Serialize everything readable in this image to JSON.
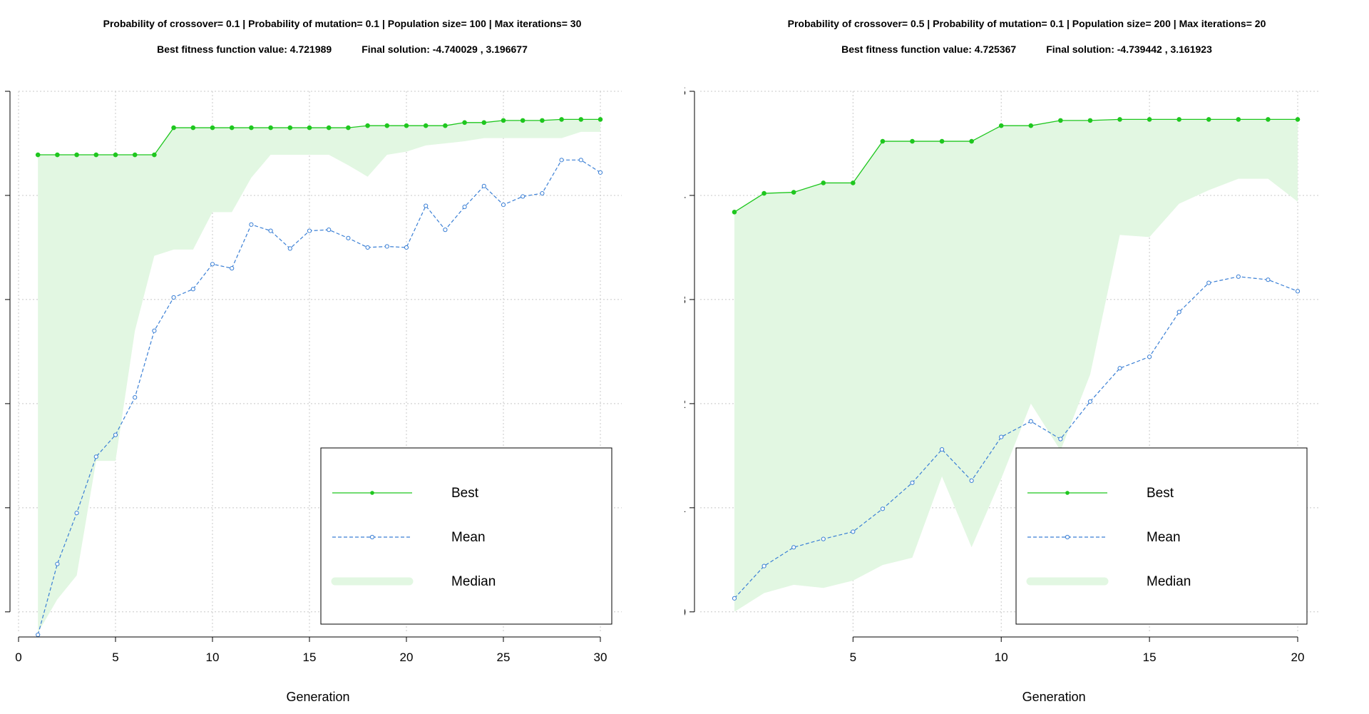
{
  "charts": [
    {
      "header": {
        "params": "Probability of crossover= 0.1  |  Probability of mutation= 0.1  |  Population size= 100  |  Max iterations= 30",
        "best_fitness": "Best fitness function value:  4.721989",
        "final_solution": "Final solution:  -4.740029 ,  3.196677"
      }
    },
    {
      "header": {
        "params": "Probability of crossover= 0.5  |  Probability of mutation= 0.1  |  Population size= 200  |  Max iterations= 20",
        "best_fitness": "Best fitness function value:  4.725367",
        "final_solution": "Final solution:  -4.739442 ,  3.161923"
      }
    }
  ],
  "colors": {
    "best": "#1fc71f",
    "mean": "#3a7fd5",
    "median_fill": "#e2f7e2",
    "grid": "#c8c8c8"
  },
  "chart_data": [
    {
      "type": "line",
      "title": "Probability of crossover= 0.1  |  Probability of mutation= 0.1  |  Population size= 100  |  Max iterations= 30",
      "xlabel": "Generation",
      "ylabel": "",
      "xlim": [
        0,
        30
      ],
      "ylim": [
        -0.2,
        5.0
      ],
      "x_ticks": [
        0,
        5,
        10,
        15,
        20,
        25,
        30
      ],
      "y_ticks": [
        0,
        1,
        2,
        3,
        4,
        5
      ],
      "y_tick_labels_visible": false,
      "grid": true,
      "legend": {
        "position": "bottom-right",
        "entries": [
          "Best",
          "Mean",
          "Median"
        ]
      },
      "x": [
        1,
        2,
        3,
        4,
        5,
        6,
        7,
        8,
        9,
        10,
        11,
        12,
        13,
        14,
        15,
        16,
        17,
        18,
        19,
        20,
        21,
        22,
        23,
        24,
        25,
        26,
        27,
        28,
        29,
        30
      ],
      "series": [
        {
          "name": "Best",
          "values": [
            4.39,
            4.39,
            4.39,
            4.39,
            4.39,
            4.39,
            4.39,
            4.65,
            4.65,
            4.65,
            4.65,
            4.65,
            4.65,
            4.65,
            4.65,
            4.65,
            4.65,
            4.67,
            4.67,
            4.67,
            4.67,
            4.67,
            4.7,
            4.7,
            4.72,
            4.72,
            4.72,
            4.73,
            4.73,
            4.73
          ]
        },
        {
          "name": "Mean",
          "values": [
            -0.22,
            0.46,
            0.95,
            1.49,
            1.7,
            2.06,
            2.7,
            3.02,
            3.1,
            3.34,
            3.3,
            3.72,
            3.66,
            3.49,
            3.66,
            3.67,
            3.59,
            3.5,
            3.51,
            3.5,
            3.9,
            3.67,
            3.89,
            4.09,
            3.91,
            3.99,
            4.02,
            4.34,
            4.34,
            4.22
          ]
        },
        {
          "name": "Median",
          "kind": "band",
          "lower": [
            -0.2,
            0.12,
            0.35,
            1.45,
            1.45,
            2.7,
            3.42,
            3.48,
            3.48,
            3.84,
            3.84,
            4.17,
            4.39,
            4.39,
            4.39,
            4.39,
            4.29,
            4.18,
            4.39,
            4.42,
            4.48,
            4.5,
            4.52,
            4.55,
            4.55,
            4.55,
            4.55,
            4.55,
            4.61,
            4.61
          ],
          "upper": [
            4.39,
            4.39,
            4.39,
            4.39,
            4.39,
            4.39,
            4.39,
            4.65,
            4.65,
            4.65,
            4.65,
            4.65,
            4.65,
            4.65,
            4.65,
            4.65,
            4.65,
            4.67,
            4.67,
            4.67,
            4.67,
            4.67,
            4.7,
            4.7,
            4.72,
            4.72,
            4.72,
            4.73,
            4.73,
            4.73
          ]
        }
      ]
    },
    {
      "type": "line",
      "title": "Probability of crossover= 0.5  |  Probability of mutation= 0.1  |  Population size= 200  |  Max iterations= 20",
      "xlabel": "Generation",
      "ylabel": "",
      "xlim": [
        1,
        20
      ],
      "ylim": [
        -0.2,
        5.0
      ],
      "x_ticks": [
        5,
        10,
        15,
        20
      ],
      "y_ticks": [
        0,
        1,
        2,
        3,
        4,
        5
      ],
      "y_tick_labels_visible": true,
      "grid": true,
      "legend": {
        "position": "bottom-right",
        "entries": [
          "Best",
          "Mean",
          "Median"
        ]
      },
      "x": [
        1,
        2,
        3,
        4,
        5,
        6,
        7,
        8,
        9,
        10,
        11,
        12,
        13,
        14,
        15,
        16,
        17,
        18,
        19,
        20
      ],
      "series": [
        {
          "name": "Best",
          "values": [
            3.84,
            4.02,
            4.03,
            4.12,
            4.12,
            4.52,
            4.52,
            4.52,
            4.52,
            4.67,
            4.67,
            4.72,
            4.72,
            4.73,
            4.73,
            4.73,
            4.73,
            4.73,
            4.73,
            4.73
          ]
        },
        {
          "name": "Mean",
          "values": [
            0.13,
            0.44,
            0.62,
            0.7,
            0.77,
            0.99,
            1.24,
            1.56,
            1.26,
            1.68,
            1.83,
            1.66,
            2.02,
            2.34,
            2.45,
            2.88,
            3.16,
            3.22,
            3.19,
            3.08
          ]
        },
        {
          "name": "Median",
          "kind": "band",
          "lower": [
            0.0,
            0.18,
            0.26,
            0.23,
            0.3,
            0.45,
            0.52,
            1.3,
            0.62,
            1.28,
            2.0,
            1.55,
            2.28,
            3.62,
            3.6,
            3.92,
            4.05,
            4.16,
            4.16,
            3.94
          ],
          "upper": [
            3.84,
            4.02,
            4.03,
            4.12,
            4.12,
            4.52,
            4.52,
            4.52,
            4.52,
            4.67,
            4.67,
            4.72,
            4.72,
            4.73,
            4.73,
            4.73,
            4.73,
            4.73,
            4.73,
            4.73
          ]
        }
      ]
    }
  ]
}
